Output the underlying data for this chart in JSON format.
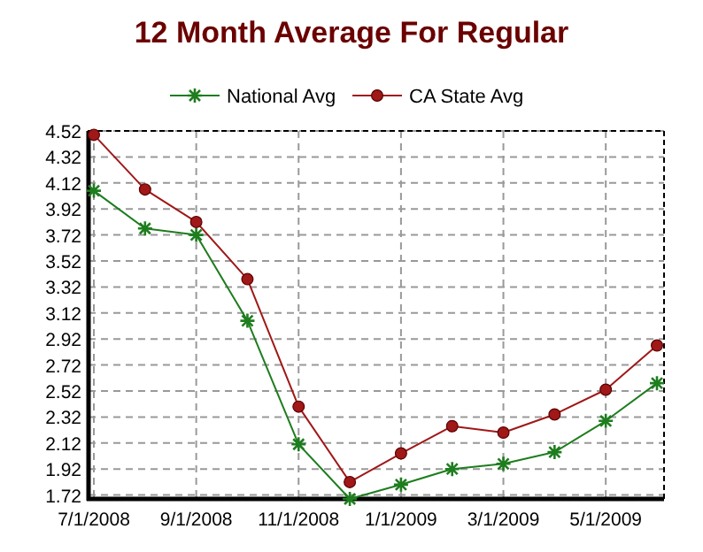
{
  "chart_data": {
    "type": "line",
    "title": "12 Month Average For Regular",
    "categories": [
      "7/1/2008",
      null,
      "9/1/2008",
      null,
      "11/1/2008",
      null,
      "1/1/2009",
      null,
      "3/1/2009",
      null,
      "5/1/2009",
      null
    ],
    "series": [
      {
        "name": "National Avg",
        "color": "#1e7d1e",
        "marker": "cross",
        "values": [
          4.06,
          3.77,
          3.72,
          3.06,
          2.11,
          1.69,
          1.8,
          1.92,
          1.96,
          2.05,
          2.29,
          2.58
        ]
      },
      {
        "name": "CA State Avg",
        "color": "#a01818",
        "marker": "circle",
        "values": [
          4.49,
          4.07,
          3.82,
          3.38,
          2.4,
          1.82,
          2.04,
          2.25,
          2.2,
          2.34,
          2.53,
          2.87
        ]
      }
    ],
    "ylim": [
      1.69,
      4.52
    ],
    "yticks": [
      1.72,
      1.92,
      2.12,
      2.32,
      2.52,
      2.72,
      2.92,
      3.12,
      3.32,
      3.52,
      3.72,
      3.92,
      4.12,
      4.32,
      4.52
    ],
    "grid": true,
    "legend": "top",
    "line_style": "solid"
  }
}
